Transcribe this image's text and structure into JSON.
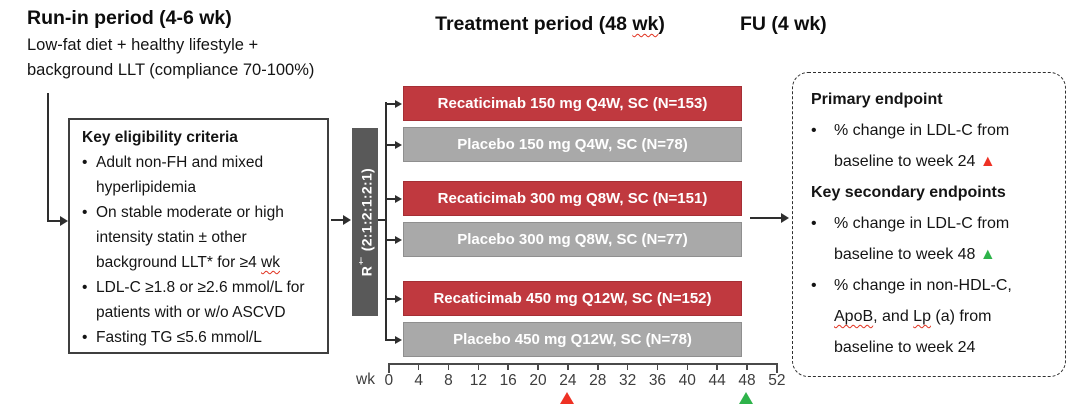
{
  "palette": {
    "arm_active": "#c0393f",
    "arm_placebo": "#a9a9a9",
    "randomization_bar": "#595959",
    "marker_red": "#ee3124",
    "marker_green": "#2eb34a",
    "spellcheck_underline": "#e0301e"
  },
  "runin": {
    "title": "Run-in period (4-6 wk)",
    "subtitle": "Low-fat diet + healthy lifestyle +\nbackground LLT (compliance 70-100%)"
  },
  "headers": {
    "treatment_segments": [
      {
        "t": "Treatment period (48 "
      },
      {
        "t": "wk",
        "w": true
      },
      {
        "t": ")"
      }
    ],
    "fu": "FU (4 wk)"
  },
  "eligibility": {
    "title": "Key eligibility criteria",
    "bullets": [
      [
        {
          "t": "Adult non-FH and mixed\nhyperlipidemia"
        }
      ],
      [
        {
          "t": "On stable moderate or high\nintensity statin ± other\nbackground LLT* for ≥4 "
        },
        {
          "t": "wk",
          "w": true
        }
      ],
      [
        {
          "t": "LDL-C ≥1.8 or ≥2.6 mmol/L for\npatients with or w/o ASCVD"
        }
      ],
      [
        {
          "t": "Fasting TG ≤5.6 mmol/L"
        }
      ]
    ]
  },
  "randomization": {
    "segments": [
      {
        "t": "R"
      },
      {
        "t": "†",
        "sup": true
      },
      {
        "t": " (2:1:2:1:2:1)"
      }
    ]
  },
  "arms": [
    {
      "label": "Recaticimab 150 mg Q4W, SC (N=153)",
      "type": "active"
    },
    {
      "label": "Placebo 150 mg Q4W, SC (N=78)",
      "type": "placebo"
    },
    {
      "label": "Recaticimab 300 mg Q8W, SC (N=151)",
      "type": "active"
    },
    {
      "label": "Placebo 300 mg Q8W, SC (N=77)",
      "type": "placebo"
    },
    {
      "label": "Recaticimab 450 mg Q12W, SC (N=152)",
      "type": "active"
    },
    {
      "label": "Placebo 450 mg Q12W, SC (N=78)",
      "type": "placebo"
    }
  ],
  "axis": {
    "unit": "wk",
    "ticks": [
      "0",
      "4",
      "8",
      "12",
      "16",
      "20",
      "24",
      "28",
      "32",
      "36",
      "40",
      "44",
      "48",
      "52"
    ],
    "markers": [
      {
        "week": 24,
        "color": "#ee3124",
        "name": "week-24-assessment-marker"
      },
      {
        "week": 48,
        "color": "#2eb34a",
        "name": "week-48-assessment-marker"
      }
    ]
  },
  "endpoints": {
    "primary_title": "Primary endpoint",
    "primary_bullets": [
      [
        {
          "t": "% change in LDL-C from\nbaseline to week 24 "
        },
        {
          "t": "▲",
          "color": "#ee3124",
          "icon": "red-triangle-icon"
        }
      ]
    ],
    "secondary_title": "Key secondary endpoints",
    "secondary_bullets": [
      [
        {
          "t": "% change in LDL-C from\nbaseline to week 48 "
        },
        {
          "t": "▲",
          "color": "#2eb34a",
          "icon": "green-triangle-icon"
        }
      ],
      [
        {
          "t": "% change in non-HDL-C,\n"
        },
        {
          "t": "ApoB",
          "w": true
        },
        {
          "t": ", and "
        },
        {
          "t": "Lp",
          "w": true
        },
        {
          "t": " (a) from\nbaseline to week 24"
        }
      ]
    ]
  }
}
